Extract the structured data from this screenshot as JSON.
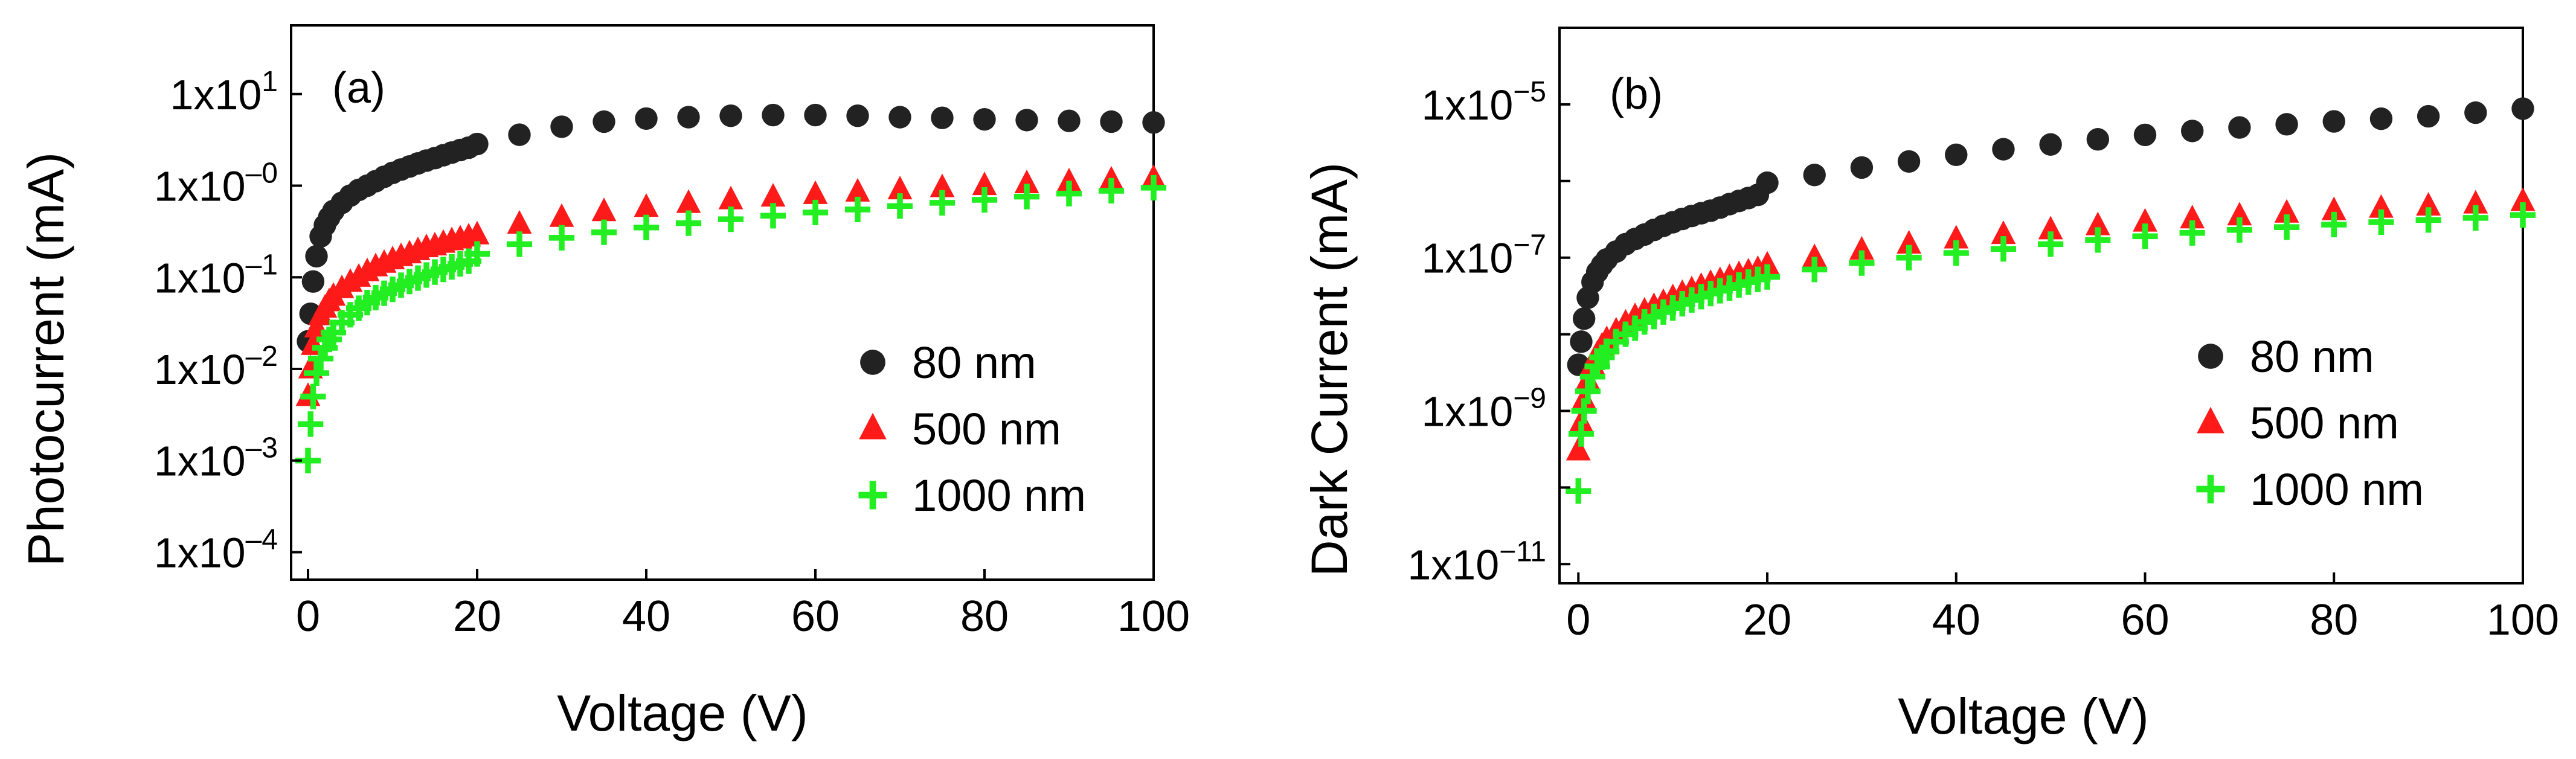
{
  "chart_data": [
    {
      "type": "scatter",
      "panel_label": "(a)",
      "xlabel": "Voltage (V)",
      "ylabel": "Photocurrent (mA)",
      "xlim": [
        -2,
        100
      ],
      "yscale": "log",
      "ylim_exp": [
        -4.3,
        1.75
      ],
      "x_ticks": [
        0,
        20,
        40,
        60,
        80,
        100
      ],
      "x_tick_labels": [
        "0",
        "20",
        "40",
        "60",
        "80",
        "100"
      ],
      "y_ticks": [
        {
          "base": "1x10",
          "exp": "1",
          "value": 1
        },
        {
          "base": "1x10",
          "exp": "–0",
          "value": 0
        },
        {
          "base": "1x10",
          "exp": "–1",
          "value": -1
        },
        {
          "base": "1x10",
          "exp": "–2",
          "value": -2
        },
        {
          "base": "1x10",
          "exp": "–3",
          "value": -3
        },
        {
          "base": "1x10",
          "exp": "–4",
          "value": -4
        }
      ],
      "legend_position": "center-right",
      "series": [
        {
          "name": "80 nm",
          "marker": "circle",
          "color": "#222222",
          "x": [
            0,
            0.3,
            0.6,
            1,
            1.5,
            2,
            2.5,
            3,
            4,
            5,
            6,
            7,
            8,
            9,
            10,
            11,
            12,
            13,
            14,
            15,
            16,
            17,
            18,
            19,
            20,
            25,
            30,
            35,
            40,
            45,
            50,
            55,
            60,
            65,
            70,
            75,
            80,
            85,
            90,
            95,
            100
          ],
          "y": [
            0.02,
            0.04,
            0.09,
            0.17,
            0.28,
            0.37,
            0.45,
            0.53,
            0.65,
            0.78,
            0.9,
            1.0,
            1.12,
            1.25,
            1.38,
            1.5,
            1.62,
            1.75,
            1.88,
            2.0,
            2.15,
            2.3,
            2.45,
            2.6,
            2.85,
            3.6,
            4.4,
            5.0,
            5.4,
            5.6,
            5.8,
            5.9,
            5.9,
            5.8,
            5.6,
            5.5,
            5.3,
            5.2,
            5.1,
            5.0,
            4.9
          ]
        },
        {
          "name": "500 nm",
          "marker": "triangle",
          "color": "#ff1a1a",
          "x": [
            0,
            0.3,
            0.6,
            1,
            1.5,
            2,
            2.5,
            3,
            4,
            5,
            6,
            7,
            8,
            9,
            10,
            11,
            12,
            13,
            14,
            15,
            16,
            17,
            18,
            19,
            20,
            25,
            30,
            35,
            40,
            45,
            50,
            55,
            60,
            65,
            70,
            75,
            80,
            85,
            90,
            95,
            100
          ],
          "y": [
            0.005,
            0.01,
            0.018,
            0.028,
            0.038,
            0.046,
            0.054,
            0.062,
            0.075,
            0.088,
            0.1,
            0.115,
            0.13,
            0.142,
            0.155,
            0.168,
            0.18,
            0.195,
            0.21,
            0.22,
            0.235,
            0.25,
            0.262,
            0.275,
            0.29,
            0.38,
            0.45,
            0.52,
            0.58,
            0.64,
            0.7,
            0.75,
            0.8,
            0.85,
            0.9,
            0.95,
            1.0,
            1.05,
            1.1,
            1.15,
            1.2
          ]
        },
        {
          "name": "1000 nm",
          "marker": "plus",
          "color": "#22ee22",
          "x": [
            0,
            0.3,
            0.6,
            1,
            1.5,
            2,
            2.5,
            3,
            4,
            5,
            6,
            7,
            8,
            9,
            10,
            11,
            12,
            13,
            14,
            15,
            16,
            17,
            18,
            19,
            20,
            25,
            30,
            35,
            40,
            45,
            50,
            55,
            60,
            65,
            70,
            75,
            80,
            85,
            90,
            95,
            100
          ],
          "y": [
            0.001,
            0.0025,
            0.005,
            0.009,
            0.013,
            0.017,
            0.021,
            0.025,
            0.032,
            0.039,
            0.046,
            0.053,
            0.06,
            0.067,
            0.074,
            0.082,
            0.09,
            0.098,
            0.106,
            0.114,
            0.122,
            0.13,
            0.14,
            0.15,
            0.18,
            0.23,
            0.27,
            0.31,
            0.35,
            0.39,
            0.43,
            0.47,
            0.51,
            0.55,
            0.6,
            0.65,
            0.7,
            0.76,
            0.82,
            0.88,
            0.95
          ]
        }
      ]
    },
    {
      "type": "scatter",
      "panel_label": "(b)",
      "xlabel": "Voltage (V)",
      "ylabel": "Dark Current (mA)",
      "xlim": [
        -2,
        100
      ],
      "yscale": "log",
      "ylim_exp": [
        -11.25,
        -4.0
      ],
      "x_ticks": [
        0,
        20,
        40,
        60,
        80,
        100
      ],
      "x_tick_labels": [
        "0",
        "20",
        "40",
        "60",
        "80",
        "100"
      ],
      "y_ticks": [
        {
          "base": "1x10",
          "exp": "−5",
          "value": -5
        },
        {
          "base": "1x10",
          "exp": "−7",
          "value": -7
        },
        {
          "base": "1x10",
          "exp": "−9",
          "value": -9
        },
        {
          "base": "1x10",
          "exp": "−11",
          "value": -11
        }
      ],
      "legend_position": "center-right",
      "series": [
        {
          "name": "80 nm",
          "marker": "circle",
          "color": "#222222",
          "x": [
            0,
            0.3,
            0.6,
            1,
            1.5,
            2,
            2.5,
            3,
            4,
            5,
            6,
            7,
            8,
            9,
            10,
            11,
            12,
            13,
            14,
            15,
            16,
            17,
            18,
            19,
            20,
            25,
            30,
            35,
            40,
            45,
            50,
            55,
            60,
            65,
            70,
            75,
            80,
            85,
            90,
            95,
            100
          ],
          "y": [
            4e-09,
            8e-09,
            1.6e-08,
            3e-08,
            4.8e-08,
            6.5e-08,
            8e-08,
            9.5e-08,
            1.2e-07,
            1.5e-07,
            1.75e-07,
            2e-07,
            2.3e-07,
            2.6e-07,
            2.9e-07,
            3.2e-07,
            3.5e-07,
            3.8e-07,
            4.1e-07,
            4.5e-07,
            5e-07,
            5.5e-07,
            6e-07,
            6.6e-07,
            9.5e-07,
            1.2e-06,
            1.5e-06,
            1.8e-06,
            2.2e-06,
            2.6e-06,
            3e-06,
            3.5e-06,
            4e-06,
            4.5e-06,
            5e-06,
            5.5e-06,
            6e-06,
            6.5e-06,
            7e-06,
            7.8e-06,
            8.8e-06
          ]
        },
        {
          "name": "500 nm",
          "marker": "triangle",
          "color": "#ff1a1a",
          "x": [
            0,
            0.3,
            0.6,
            1,
            1.5,
            2,
            2.5,
            3,
            4,
            5,
            6,
            7,
            8,
            9,
            10,
            11,
            12,
            13,
            14,
            15,
            16,
            17,
            18,
            19,
            20,
            25,
            30,
            35,
            40,
            45,
            50,
            55,
            60,
            65,
            70,
            75,
            80,
            85,
            90,
            95,
            100
          ],
          "y": [
            3e-10,
            7e-10,
            1.4e-09,
            2.5e-09,
            4e-09,
            5.5e-09,
            7e-09,
            8.5e-09,
            1.1e-08,
            1.4e-08,
            1.7e-08,
            2e-08,
            2.3e-08,
            2.6e-08,
            3e-08,
            3.4e-08,
            3.8e-08,
            4.2e-08,
            4.6e-08,
            5e-08,
            5.5e-08,
            6e-08,
            6.5e-08,
            7e-08,
            8e-08,
            1e-07,
            1.25e-07,
            1.5e-07,
            1.75e-07,
            2e-07,
            2.3e-07,
            2.6e-07,
            2.9e-07,
            3.2e-07,
            3.5e-07,
            3.8e-07,
            4.1e-07,
            4.4e-07,
            4.7e-07,
            5e-07,
            5.4e-07
          ]
        },
        {
          "name": "1000 nm",
          "marker": "plus",
          "color": "#22ee22",
          "x": [
            0,
            0.3,
            0.6,
            1,
            1.5,
            2,
            2.5,
            3,
            4,
            5,
            6,
            7,
            8,
            9,
            10,
            11,
            12,
            13,
            14,
            15,
            16,
            17,
            18,
            19,
            20,
            25,
            30,
            35,
            40,
            45,
            50,
            55,
            60,
            65,
            70,
            75,
            80,
            85,
            90,
            95,
            100
          ],
          "y": [
            9e-11,
            5e-10,
            1e-09,
            1.8e-09,
            2.8e-09,
            3.8e-09,
            5e-09,
            6e-09,
            8e-09,
            1e-08,
            1.2e-08,
            1.45e-08,
            1.7e-08,
            1.95e-08,
            2.2e-08,
            2.5e-08,
            2.8e-08,
            3.1e-08,
            3.4e-08,
            3.7e-08,
            4e-08,
            4.4e-08,
            4.8e-08,
            5.2e-08,
            5.6e-08,
            7e-08,
            8.5e-08,
            1e-07,
            1.15e-07,
            1.3e-07,
            1.5e-07,
            1.7e-07,
            1.9e-07,
            2.1e-07,
            2.3e-07,
            2.5e-07,
            2.7e-07,
            2.9e-07,
            3.1e-07,
            3.3e-07,
            3.6e-07
          ]
        }
      ]
    }
  ]
}
